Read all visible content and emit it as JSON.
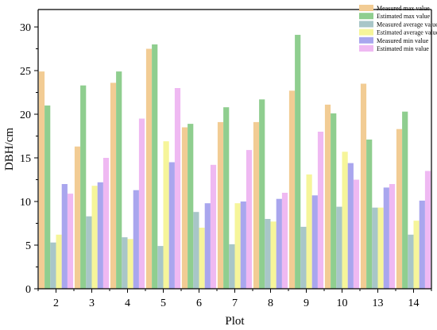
{
  "chart_data": {
    "type": "bar",
    "title": "",
    "xlabel": "Plot",
    "ylabel": "DBH/cm",
    "ylim": [
      0,
      32
    ],
    "yticks": [
      0,
      5,
      10,
      15,
      20,
      25,
      30
    ],
    "grid": false,
    "legend_position": "top-right",
    "categories": [
      "2",
      "3",
      "4",
      "5",
      "6",
      "7",
      "8",
      "9",
      "10",
      "13",
      "14"
    ],
    "series": [
      {
        "name": "Measured max value",
        "color": "#f2cc94",
        "values": [
          24.9,
          16.3,
          23.6,
          27.5,
          18.5,
          19.1,
          19.1,
          22.7,
          21.1,
          23.5,
          18.3
        ]
      },
      {
        "name": "Estimated max value",
        "color": "#8fce8f",
        "values": [
          21.0,
          23.3,
          24.9,
          28.0,
          18.9,
          20.8,
          21.7,
          29.1,
          20.1,
          17.1,
          20.3
        ]
      },
      {
        "name": "Measured average value",
        "color": "#a8c6c8",
        "values": [
          5.3,
          8.3,
          5.9,
          4.9,
          8.8,
          5.1,
          8.0,
          7.1,
          9.4,
          9.3,
          6.2
        ]
      },
      {
        "name": "Estimated average value",
        "color": "#f6f59a",
        "values": [
          6.2,
          11.8,
          5.7,
          16.9,
          7.0,
          9.8,
          7.7,
          13.1,
          15.7,
          9.3,
          7.8
        ]
      },
      {
        "name": "Measured min value",
        "color": "#a9a6ee",
        "values": [
          12.0,
          12.2,
          11.3,
          14.5,
          9.8,
          10.0,
          10.3,
          10.7,
          14.4,
          11.6,
          10.1
        ]
      },
      {
        "name": "Estimated min value",
        "color": "#efb9f2",
        "values": [
          10.9,
          15.0,
          19.5,
          23.0,
          14.2,
          15.9,
          11.0,
          18.0,
          12.5,
          12.0,
          13.5
        ]
      }
    ]
  }
}
